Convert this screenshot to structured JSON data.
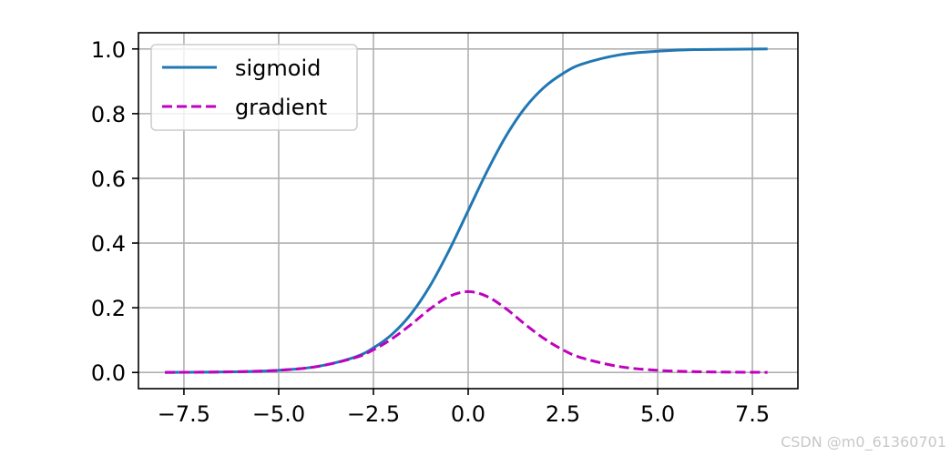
{
  "chart_data": {
    "type": "line",
    "title": "",
    "xlabel": "",
    "ylabel": "",
    "xlim": [
      -8.7,
      8.7
    ],
    "ylim": [
      -0.05,
      1.05
    ],
    "x_ticks": [
      -7.5,
      -5.0,
      -2.5,
      0.0,
      2.5,
      5.0,
      7.5
    ],
    "x_tick_labels": [
      "−7.5",
      "−5.0",
      "−2.5",
      "0.0",
      "2.5",
      "5.0",
      "7.5"
    ],
    "y_ticks": [
      0.0,
      0.2,
      0.4,
      0.6,
      0.8,
      1.0
    ],
    "y_tick_labels": [
      "0.0",
      "0.2",
      "0.4",
      "0.6",
      "0.8",
      "1.0"
    ],
    "grid": true,
    "legend": "top-left",
    "series": [
      {
        "name": "sigmoid",
        "style": "solid",
        "color": "#1f77b4",
        "x": [
          -8,
          -7,
          -6,
          -5,
          -4,
          -3,
          -2.5,
          -2,
          -1.5,
          -1,
          -0.5,
          0,
          0.5,
          1,
          1.5,
          2,
          2.5,
          3,
          4,
          5,
          6,
          7,
          7.9
        ],
        "y": [
          0.0003,
          0.0009,
          0.0025,
          0.0067,
          0.018,
          0.047,
          0.076,
          0.119,
          0.182,
          0.269,
          0.378,
          0.5,
          0.622,
          0.731,
          0.818,
          0.881,
          0.924,
          0.953,
          0.982,
          0.993,
          0.998,
          0.999,
          1.0
        ]
      },
      {
        "name": "gradient",
        "style": "dashed",
        "color": "#bf00bf",
        "x": [
          -8,
          -7,
          -6,
          -5,
          -4,
          -3,
          -2.5,
          -2,
          -1.5,
          -1,
          -0.5,
          0,
          0.5,
          1,
          1.5,
          2,
          2.5,
          3,
          4,
          5,
          6,
          7,
          7.9
        ],
        "y": [
          0.0003,
          0.0009,
          0.0025,
          0.0066,
          0.018,
          0.045,
          0.07,
          0.105,
          0.149,
          0.197,
          0.235,
          0.25,
          0.235,
          0.197,
          0.149,
          0.105,
          0.07,
          0.045,
          0.018,
          0.0066,
          0.0025,
          0.0009,
          0.0004
        ]
      }
    ]
  },
  "watermark": "CSDN @m0_61360701"
}
